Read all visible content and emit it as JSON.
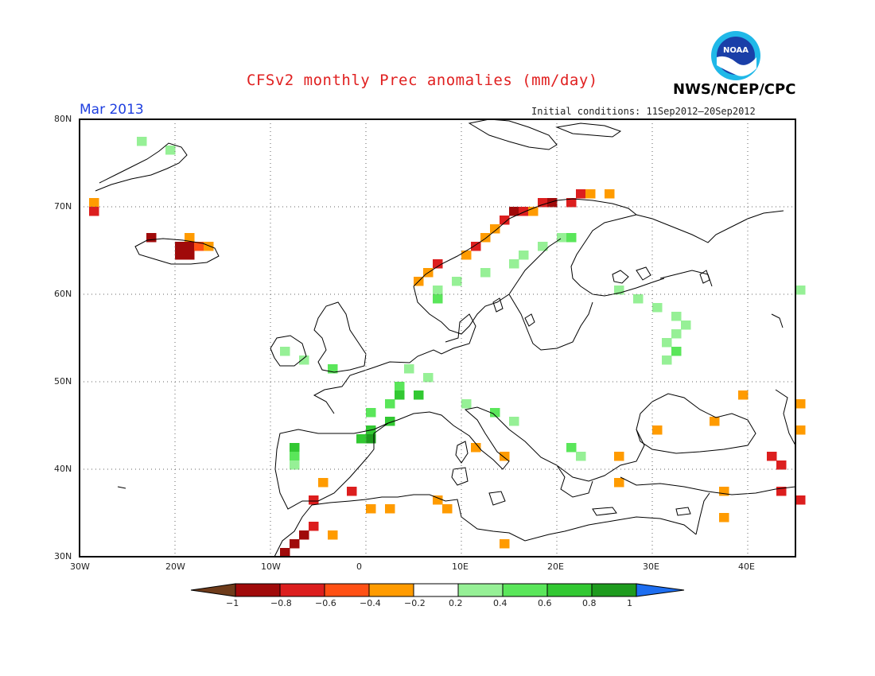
{
  "header": {
    "title": "CFSv2 monthly Prec anomalies (mm/day)",
    "agency": "NWS/NCEP/CPC",
    "month": "Mar 2013",
    "initial_conditions": "Initial conditions: 11Sep2012–20Sep2012",
    "logo_text": "NOAA"
  },
  "map": {
    "lon_range": [
      -30,
      45
    ],
    "lat_range": [
      30,
      80
    ],
    "grid": true,
    "lon_ticks": [
      {
        "value": -30,
        "label": "30W"
      },
      {
        "value": -20,
        "label": "20W"
      },
      {
        "value": -10,
        "label": "10W"
      },
      {
        "value": 0,
        "label": "0"
      },
      {
        "value": 10,
        "label": "10E"
      },
      {
        "value": 20,
        "label": "20E"
      },
      {
        "value": 30,
        "label": "30E"
      },
      {
        "value": 40,
        "label": "40E"
      }
    ],
    "lat_ticks": [
      {
        "value": 80,
        "label": "80N"
      },
      {
        "value": 70,
        "label": "70N"
      },
      {
        "value": 60,
        "label": "60N"
      },
      {
        "value": 50,
        "label": "50N"
      },
      {
        "value": 40,
        "label": "40N"
      },
      {
        "value": 30,
        "label": "30N"
      }
    ],
    "colors": {
      "lt_-1": "#6e3b1a",
      "-1_-0.8": "#a00a0a",
      "-0.8_-0.6": "#dc1e1e",
      "-0.6_-0.4": "#ff5014",
      "-0.4_-0.2": "#ff9b00",
      "0.2_0.4": "#96f096",
      "0.4_0.6": "#5ae65a",
      "0.6_0.8": "#32c832",
      "0.8_1": "#1e9b1e",
      "gt_1": "#1e6ef0"
    },
    "anomaly_cells": [
      {
        "lat": 70,
        "lon": -29,
        "value": -0.35
      },
      {
        "lat": 69,
        "lon": -29,
        "value": -0.65
      },
      {
        "lat": 66,
        "lon": -23,
        "value": -0.85
      },
      {
        "lat": 66,
        "lon": -19,
        "value": -0.3
      },
      {
        "lat": 65,
        "lon": -20,
        "value": -0.9
      },
      {
        "lat": 65,
        "lon": -19,
        "value": -0.9
      },
      {
        "lat": 65,
        "lon": -18,
        "value": -0.5
      },
      {
        "lat": 65,
        "lon": -17,
        "value": -0.3
      },
      {
        "lat": 64,
        "lon": -20,
        "value": -0.9
      },
      {
        "lat": 64,
        "lon": -19,
        "value": -0.9
      },
      {
        "lat": 77,
        "lon": -24,
        "value": 0.3
      },
      {
        "lat": 76,
        "lon": -21,
        "value": 0.3
      },
      {
        "lat": 69,
        "lon": 15,
        "value": -0.85
      },
      {
        "lat": 69,
        "lon": 16,
        "value": -0.7
      },
      {
        "lat": 69,
        "lon": 17,
        "value": -0.35
      },
      {
        "lat": 70,
        "lon": 18,
        "value": -0.7
      },
      {
        "lat": 70,
        "lon": 19,
        "value": -0.85
      },
      {
        "lat": 70,
        "lon": 21,
        "value": -0.6
      },
      {
        "lat": 71,
        "lon": 22,
        "value": -0.65
      },
      {
        "lat": 71,
        "lon": 23,
        "value": -0.35
      },
      {
        "lat": 71,
        "lon": 25,
        "value": -0.35
      },
      {
        "lat": 68,
        "lon": 14,
        "value": -0.7
      },
      {
        "lat": 67,
        "lon": 13,
        "value": -0.35
      },
      {
        "lat": 66,
        "lon": 12,
        "value": -0.3
      },
      {
        "lat": 65,
        "lon": 11,
        "value": -0.6
      },
      {
        "lat": 64,
        "lon": 10,
        "value": -0.35
      },
      {
        "lat": 63,
        "lon": 7,
        "value": -0.65
      },
      {
        "lat": 62,
        "lon": 6,
        "value": -0.35
      },
      {
        "lat": 61,
        "lon": 5,
        "value": -0.3
      },
      {
        "lat": 60,
        "lon": 7,
        "value": 0.3
      },
      {
        "lat": 59,
        "lon": 7,
        "value": 0.5
      },
      {
        "lat": 61,
        "lon": 9,
        "value": 0.3
      },
      {
        "lat": 62,
        "lon": 12,
        "value": 0.3
      },
      {
        "lat": 63,
        "lon": 15,
        "value": 0.3
      },
      {
        "lat": 64,
        "lon": 16,
        "value": 0.3
      },
      {
        "lat": 65,
        "lon": 18,
        "value": 0.3
      },
      {
        "lat": 66,
        "lon": 20,
        "value": 0.3
      },
      {
        "lat": 66,
        "lon": 21,
        "value": 0.4
      },
      {
        "lat": 60,
        "lon": 26,
        "value": 0.3
      },
      {
        "lat": 59,
        "lon": 28,
        "value": 0.3
      },
      {
        "lat": 58,
        "lon": 30,
        "value": 0.3
      },
      {
        "lat": 57,
        "lon": 32,
        "value": 0.3
      },
      {
        "lat": 56,
        "lon": 33,
        "value": 0.3
      },
      {
        "lat": 55,
        "lon": 32,
        "value": 0.3
      },
      {
        "lat": 54,
        "lon": 31,
        "value": 0.3
      },
      {
        "lat": 53,
        "lon": 32,
        "value": 0.4
      },
      {
        "lat": 52,
        "lon": 31,
        "value": 0.3
      },
      {
        "lat": 53,
        "lon": -9,
        "value": 0.3
      },
      {
        "lat": 52,
        "lon": -7,
        "value": 0.3
      },
      {
        "lat": 51,
        "lon": -4,
        "value": 0.4
      },
      {
        "lat": 51,
        "lon": 4,
        "value": 0.3
      },
      {
        "lat": 50,
        "lon": 6,
        "value": 0.3
      },
      {
        "lat": 49,
        "lon": 3,
        "value": 0.4
      },
      {
        "lat": 48,
        "lon": 3,
        "value": 0.6
      },
      {
        "lat": 48,
        "lon": 5,
        "value": 0.6
      },
      {
        "lat": 47,
        "lon": 2,
        "value": 0.4
      },
      {
        "lat": 46,
        "lon": 0,
        "value": 0.5
      },
      {
        "lat": 45,
        "lon": 2,
        "value": 0.6
      },
      {
        "lat": 44,
        "lon": 0,
        "value": 0.6
      },
      {
        "lat": 43,
        "lon": 0,
        "value": 0.8
      },
      {
        "lat": 43,
        "lon": -1,
        "value": 0.6
      },
      {
        "lat": 42,
        "lon": -8,
        "value": 0.6
      },
      {
        "lat": 41,
        "lon": -8,
        "value": 0.5
      },
      {
        "lat": 40,
        "lon": -8,
        "value": 0.3
      },
      {
        "lat": 47,
        "lon": 10,
        "value": 0.3
      },
      {
        "lat": 46,
        "lon": 13,
        "value": 0.4
      },
      {
        "lat": 45,
        "lon": 15,
        "value": 0.3
      },
      {
        "lat": 42,
        "lon": 21,
        "value": 0.4
      },
      {
        "lat": 41,
        "lon": 22,
        "value": 0.3
      },
      {
        "lat": 38,
        "lon": -5,
        "value": -0.35
      },
      {
        "lat": 37,
        "lon": -2,
        "value": -0.6
      },
      {
        "lat": 36,
        "lon": -6,
        "value": -0.65
      },
      {
        "lat": 35,
        "lon": 0,
        "value": -0.35
      },
      {
        "lat": 35,
        "lon": 2,
        "value": -0.3
      },
      {
        "lat": 33,
        "lon": -6,
        "value": -0.6
      },
      {
        "lat": 32,
        "lon": -7,
        "value": -0.85
      },
      {
        "lat": 31,
        "lon": -8,
        "value": -0.85
      },
      {
        "lat": 30,
        "lon": -9,
        "value": -0.9
      },
      {
        "lat": 32,
        "lon": -4,
        "value": -0.35
      },
      {
        "lat": 36,
        "lon": 7,
        "value": -0.35
      },
      {
        "lat": 35,
        "lon": 8,
        "value": -0.3
      },
      {
        "lat": 42,
        "lon": 11,
        "value": -0.35
      },
      {
        "lat": 41,
        "lon": 14,
        "value": -0.3
      },
      {
        "lat": 31,
        "lon": 14,
        "value": -0.35
      },
      {
        "lat": 41,
        "lon": 26,
        "value": -0.35
      },
      {
        "lat": 38,
        "lon": 26,
        "value": -0.3
      },
      {
        "lat": 44,
        "lon": 30,
        "value": -0.35
      },
      {
        "lat": 45,
        "lon": 36,
        "value": -0.3
      },
      {
        "lat": 48,
        "lon": 39,
        "value": -0.35
      },
      {
        "lat": 41,
        "lon": 42,
        "value": -0.75
      },
      {
        "lat": 40,
        "lon": 43,
        "value": -0.65
      },
      {
        "lat": 37,
        "lon": 43,
        "value": -0.6
      },
      {
        "lat": 36,
        "lon": 45,
        "value": -0.6
      },
      {
        "lat": 37,
        "lon": 37,
        "value": -0.3
      },
      {
        "lat": 34,
        "lon": 37,
        "value": -0.3
      },
      {
        "lat": 44,
        "lon": 45,
        "value": -0.35
      },
      {
        "lat": 47,
        "lon": 45,
        "value": -0.35
      },
      {
        "lat": 60,
        "lon": 45,
        "value": 0.3
      }
    ]
  },
  "colorbar": {
    "labels": [
      "−1",
      "−0.8",
      "−0.6",
      "−0.4",
      "−0.2",
      "0.2",
      "0.4",
      "0.6",
      "0.8",
      "1"
    ]
  }
}
